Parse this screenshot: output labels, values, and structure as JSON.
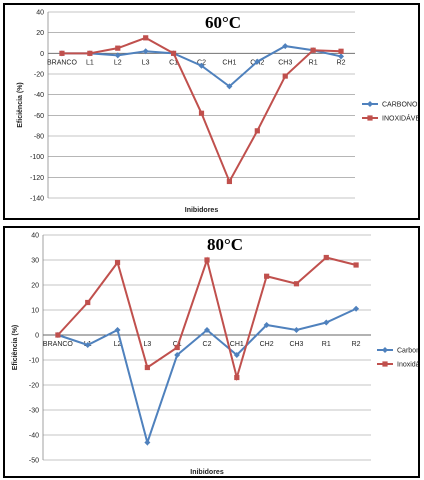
{
  "chart_data": [
    {
      "type": "line",
      "title": "60°C",
      "xlabel": "Inibidores",
      "ylabel": "Eficiência (%)",
      "categories": [
        "BRANCO",
        "L1",
        "L2",
        "L3",
        "C1",
        "C2",
        "CH1",
        "CH2",
        "CH3",
        "R1",
        "R2"
      ],
      "ylim": [
        -140,
        40
      ],
      "ystep": 20,
      "grid": true,
      "legend_position": "right",
      "series": [
        {
          "name": "CARBONO",
          "color": "#4f81bd",
          "marker": "diamond",
          "values": [
            0,
            0,
            -2,
            2,
            0,
            -12,
            -32,
            -8,
            7,
            3,
            -3
          ]
        },
        {
          "name": "INOXIDÁVEL",
          "color": "#c0504d",
          "marker": "square",
          "values": [
            0,
            0,
            5,
            15,
            0,
            -58,
            -124,
            -75,
            -22,
            3,
            2
          ]
        }
      ]
    },
    {
      "type": "line",
      "title": "80°C",
      "xlabel": "Inibidores",
      "ylabel": "Eficiência (%)",
      "categories": [
        "BRANCO",
        "L1",
        "L2",
        "L3",
        "C1",
        "C2",
        "CH1",
        "CH2",
        "CH3",
        "R1",
        "R2"
      ],
      "ylim": [
        -50,
        40
      ],
      "ystep": 10,
      "grid": true,
      "legend_position": "right",
      "series": [
        {
          "name": "Carbono",
          "color": "#4f81bd",
          "marker": "diamond",
          "values": [
            0,
            -4,
            2,
            -43,
            -8,
            2,
            -8,
            4,
            2,
            5,
            10.5
          ]
        },
        {
          "name": "Inoxidável",
          "color": "#c0504d",
          "marker": "square",
          "values": [
            0,
            13,
            29,
            -13,
            -5,
            30,
            -17,
            23.5,
            20.5,
            31,
            28
          ]
        }
      ]
    }
  ]
}
